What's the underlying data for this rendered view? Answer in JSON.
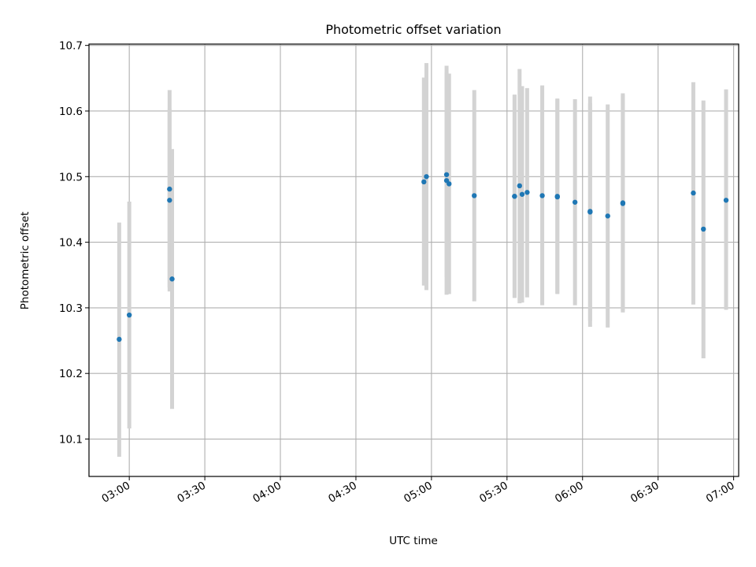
{
  "chart_data": {
    "type": "scatter",
    "title": "Photometric offset variation",
    "xlabel": "UTC time",
    "ylabel": "Photometric offset",
    "grid": true,
    "ylim": [
      10.043,
      10.702
    ],
    "xlim": [
      "02:44",
      "07:02"
    ],
    "x_ticks": [
      "03:00",
      "03:30",
      "04:00",
      "04:30",
      "05:00",
      "05:30",
      "06:00",
      "06:30",
      "07:00"
    ],
    "y_ticks": [
      10.1,
      10.2,
      10.3,
      10.4,
      10.5,
      10.6,
      10.7
    ],
    "colors": {
      "points": "#1f77b4",
      "errorbars": "#d3d3d3",
      "grid": "#b0b0b0"
    },
    "series": [
      {
        "points": [
          {
            "x": "02:56",
            "y": 10.252,
            "ylow": 10.073,
            "yhigh": 10.43
          },
          {
            "x": "03:00",
            "y": 10.289,
            "ylow": 10.116,
            "yhigh": 10.462
          },
          {
            "x": "03:16",
            "y": 10.481,
            "ylow": 10.331,
            "yhigh": 10.632
          },
          {
            "x": "03:16",
            "y": 10.464,
            "ylow": 10.325,
            "yhigh": 10.603
          },
          {
            "x": "03:17",
            "y": 10.344,
            "ylow": 10.146,
            "yhigh": 10.542
          },
          {
            "x": "04:57",
            "y": 10.492,
            "ylow": 10.334,
            "yhigh": 10.651
          },
          {
            "x": "04:58",
            "y": 10.5,
            "ylow": 10.327,
            "yhigh": 10.673
          },
          {
            "x": "05:06",
            "y": 10.494,
            "ylow": 10.32,
            "yhigh": 10.669
          },
          {
            "x": "05:06",
            "y": 10.503,
            "ylow": 10.347,
            "yhigh": 10.659
          },
          {
            "x": "05:07",
            "y": 10.489,
            "ylow": 10.321,
            "yhigh": 10.657
          },
          {
            "x": "05:17",
            "y": 10.471,
            "ylow": 10.31,
            "yhigh": 10.632
          },
          {
            "x": "05:33",
            "y": 10.47,
            "ylow": 10.315,
            "yhigh": 10.625
          },
          {
            "x": "05:33",
            "y": 10.47,
            "ylow": 10.316,
            "yhigh": 10.624
          },
          {
            "x": "05:35",
            "y": 10.486,
            "ylow": 10.307,
            "yhigh": 10.664
          },
          {
            "x": "05:36",
            "y": 10.473,
            "ylow": 10.308,
            "yhigh": 10.638
          },
          {
            "x": "05:38",
            "y": 10.476,
            "ylow": 10.316,
            "yhigh": 10.635
          },
          {
            "x": "05:44",
            "y": 10.471,
            "ylow": 10.304,
            "yhigh": 10.639
          },
          {
            "x": "05:50",
            "y": 10.47,
            "ylow": 10.322,
            "yhigh": 10.619
          },
          {
            "x": "05:50",
            "y": 10.469,
            "ylow": 10.321,
            "yhigh": 10.618
          },
          {
            "x": "05:57",
            "y": 10.461,
            "ylow": 10.304,
            "yhigh": 10.618
          },
          {
            "x": "06:03",
            "y": 10.447,
            "ylow": 10.271,
            "yhigh": 10.622
          },
          {
            "x": "06:03",
            "y": 10.446,
            "ylow": 10.28,
            "yhigh": 10.612
          },
          {
            "x": "06:10",
            "y": 10.44,
            "ylow": 10.27,
            "yhigh": 10.61
          },
          {
            "x": "06:16",
            "y": 10.46,
            "ylow": 10.293,
            "yhigh": 10.627
          },
          {
            "x": "06:16",
            "y": 10.459,
            "ylow": 10.295,
            "yhigh": 10.624
          },
          {
            "x": "06:44",
            "y": 10.475,
            "ylow": 10.305,
            "yhigh": 10.644
          },
          {
            "x": "06:48",
            "y": 10.42,
            "ylow": 10.223,
            "yhigh": 10.616
          },
          {
            "x": "06:57",
            "y": 10.464,
            "ylow": 10.297,
            "yhigh": 10.633
          }
        ]
      }
    ]
  }
}
